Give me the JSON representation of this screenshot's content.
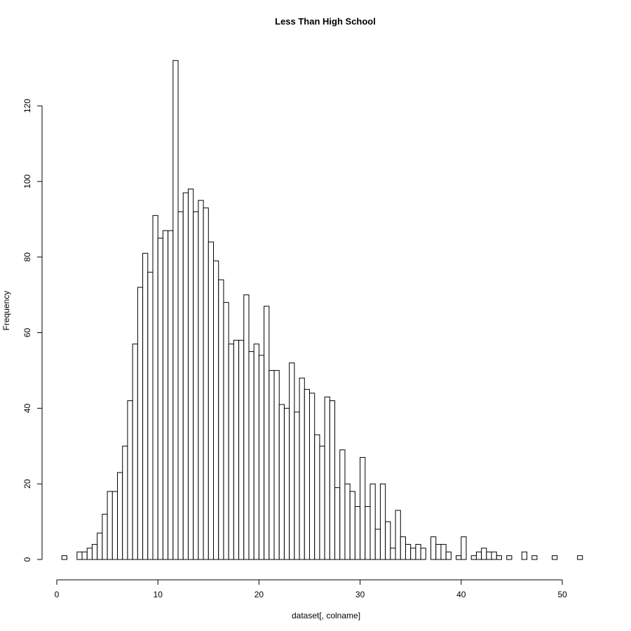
{
  "chart_data": {
    "type": "bar",
    "title": "Less Than High School",
    "xlabel": "dataset[, colname]",
    "ylabel": "Frequency",
    "bin_start": 0.5,
    "bin_width": 0.5,
    "values": [
      1,
      0,
      0,
      2,
      2,
      3,
      4,
      7,
      12,
      18,
      18,
      23,
      30,
      42,
      57,
      72,
      81,
      76,
      91,
      85,
      87,
      87,
      132,
      92,
      97,
      98,
      92,
      95,
      93,
      84,
      79,
      74,
      68,
      57,
      58,
      58,
      70,
      55,
      57,
      54,
      67,
      50,
      50,
      41,
      40,
      52,
      39,
      48,
      45,
      44,
      33,
      30,
      43,
      42,
      19,
      29,
      20,
      18,
      14,
      27,
      14,
      20,
      8,
      20,
      10,
      3,
      13,
      6,
      4,
      3,
      4,
      3,
      0,
      6,
      4,
      4,
      2,
      0,
      1,
      6,
      0,
      1,
      2,
      3,
      2,
      2,
      1,
      0,
      1,
      0,
      0,
      2,
      0,
      1,
      0,
      0,
      0,
      1,
      0,
      0,
      0,
      0,
      1
    ],
    "xlim": [
      0,
      52.5
    ],
    "ylim": [
      0,
      132
    ],
    "xticks": [
      0,
      10,
      20,
      30,
      40,
      50
    ],
    "yticks": [
      0,
      20,
      40,
      60,
      80,
      100,
      120
    ],
    "grid": false,
    "legend": "none"
  }
}
